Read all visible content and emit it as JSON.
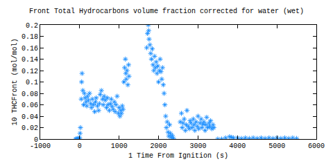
{
  "chart_data": {
    "type": "scatter",
    "title": "Front Total Hydrocarbons volume fraction corrected for water (wet)",
    "x_label": "1 Time From Ignition (s)",
    "y_label": "10 THCFront (mol/mol)",
    "color": "#1e90ff",
    "marker": "asterisk",
    "grid": false,
    "xlim": [
      -1000,
      6000
    ],
    "xticks": [
      -1000,
      0,
      1000,
      2000,
      3000,
      4000,
      5000,
      6000
    ],
    "ylim": [
      0,
      0.2
    ],
    "yticks": [
      0,
      0.02,
      0.04,
      0.06,
      0.08,
      0.1,
      0.12,
      0.14,
      0.16,
      0.18,
      0.2
    ],
    "x": [
      -100,
      -80,
      -60,
      -40,
      -20,
      0,
      10,
      20,
      40,
      50,
      60,
      80,
      100,
      120,
      140,
      160,
      180,
      200,
      220,
      250,
      280,
      300,
      320,
      350,
      380,
      400,
      420,
      450,
      480,
      500,
      520,
      550,
      580,
      600,
      620,
      650,
      680,
      700,
      720,
      750,
      780,
      800,
      820,
      850,
      880,
      900,
      920,
      950,
      980,
      1000,
      1020,
      1040,
      1060,
      1080,
      1100,
      1120,
      1140,
      1160,
      1170,
      1180,
      1200,
      1220,
      1240,
      1250,
      1700,
      1720,
      1740,
      1750,
      1760,
      1780,
      1800,
      1820,
      1840,
      1860,
      1880,
      1900,
      1920,
      1940,
      1960,
      1980,
      2000,
      2020,
      2040,
      2060,
      2080,
      2100,
      2120,
      2140,
      2160,
      2180,
      2200,
      2220,
      2240,
      2260,
      2280,
      2300,
      2320,
      2350,
      2380,
      2550,
      2580,
      2600,
      2620,
      2650,
      2680,
      2700,
      2720,
      2750,
      2780,
      2800,
      2820,
      2850,
      2880,
      2900,
      2920,
      2950,
      2980,
      3000,
      3020,
      3050,
      3080,
      3100,
      3120,
      3150,
      3180,
      3200,
      3220,
      3250,
      3280,
      3300,
      3320,
      3350,
      3380,
      3400,
      3500,
      3600,
      3700,
      3800,
      3850,
      3900,
      4000,
      4100,
      4200,
      4300,
      4400,
      4500,
      4600,
      4700,
      4800,
      4900,
      5000,
      5100,
      5200,
      5300,
      5400,
      5500
    ],
    "values": [
      0,
      0,
      0,
      0,
      0,
      0.002,
      0.01,
      0.02,
      0.07,
      0.1,
      0.115,
      0.085,
      0.06,
      0.08,
      0.072,
      0.065,
      0.058,
      0.075,
      0.068,
      0.08,
      0.062,
      0.055,
      0.07,
      0.06,
      0.048,
      0.065,
      0.072,
      0.058,
      0.05,
      0.062,
      0.078,
      0.085,
      0.07,
      0.06,
      0.075,
      0.068,
      0.055,
      0.072,
      0.06,
      0.05,
      0.062,
      0.07,
      0.057,
      0.052,
      0.065,
      0.048,
      0.06,
      0.075,
      0.045,
      0.055,
      0.04,
      0.05,
      0.045,
      0.058,
      0.052,
      0.1,
      0.125,
      0.14,
      0.115,
      0.105,
      0.12,
      0.095,
      0.13,
      0.11,
      0.16,
      0.185,
      0.2,
      0.19,
      0.175,
      0.165,
      0.15,
      0.14,
      0.158,
      0.13,
      0.12,
      0.145,
      0.125,
      0.135,
      0.115,
      0.128,
      0.1,
      0.12,
      0.14,
      0.118,
      0.105,
      0.125,
      0.095,
      0.08,
      0.06,
      0.04,
      0.02,
      0.03,
      0.012,
      0.005,
      0.025,
      0.01,
      0.003,
      0.006,
      0.001,
      0.03,
      0.045,
      0.02,
      0.028,
      0.035,
      0.015,
      0.025,
      0.05,
      0.022,
      0.018,
      0.032,
      0.028,
      0.02,
      0.035,
      0.025,
      0.015,
      0.03,
      0.022,
      0.04,
      0.018,
      0.028,
      0.035,
      0.02,
      0.026,
      0.03,
      0.015,
      0.025,
      0.038,
      0.02,
      0.028,
      0.022,
      0.032,
      0.018,
      0.025,
      0.02,
      0,
      0,
      0.002,
      0.004,
      0.003,
      0.002,
      0.002,
      0.001,
      0.002,
      0.001,
      0.002,
      0.001,
      0.002,
      0.001,
      0.002,
      0.001,
      0.002,
      0.001,
      0.002,
      0.001,
      0.002,
      0.001
    ]
  }
}
